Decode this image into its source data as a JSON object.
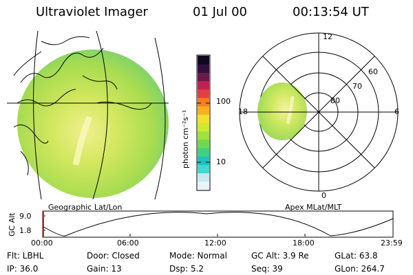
{
  "header": {
    "title": "Ultraviolet Imager",
    "date": "01 Jul 00",
    "time": "00:13:54 UT"
  },
  "geo_panel": {
    "label": "Geographic Lat/Lon"
  },
  "apex_panel": {
    "label": "Apex MLat/MLT",
    "lat_labels": [
      "80",
      "70",
      "60"
    ],
    "mlt_labels": {
      "top": "12",
      "bottom": "0",
      "left": "18",
      "right": "6"
    }
  },
  "colorbar": {
    "unit_label": "photon cm⁻²s⁻¹",
    "tick_high": "100",
    "tick_low": "10",
    "colors": [
      "#e8f4f8",
      "#c8e8f0",
      "#40d8d0",
      "#20c0c0",
      "#40d080",
      "#70d850",
      "#a0e040",
      "#d0e830",
      "#f0e030",
      "#f8b020",
      "#f08020",
      "#e04040",
      "#c02050",
      "#6a1a4a",
      "#301040",
      "#100820"
    ]
  },
  "altitude_plot": {
    "ylabel": "GC Alt",
    "ytick_top": "9.0",
    "ytick_bottom": "1.8",
    "time_ticks": [
      "00:00",
      "06:00",
      "12:00",
      "18:00",
      "23:59"
    ]
  },
  "info": {
    "flt": "Flt: LBHL",
    "ip": "IP: 36.0",
    "door": "Door: Closed",
    "gain": "Gain: 13",
    "mode": "Mode: Normal",
    "dsp": "Dsp:     5.2",
    "gcalt": "GC Alt:  3.9 Re",
    "seq": "Seq: 39",
    "glat": "GLat:  63.8",
    "glon": "GLon: 264.7"
  },
  "colors": {
    "image_base": "#b8dc50",
    "image_bright": "#f4f4a0",
    "image_dim": "#60d090"
  }
}
